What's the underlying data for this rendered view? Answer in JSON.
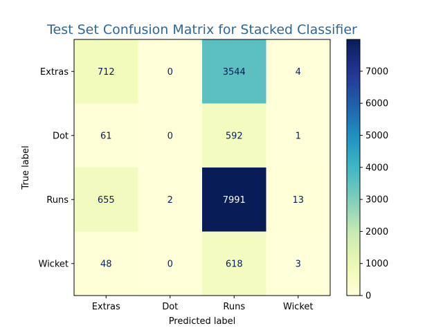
{
  "chart_data": {
    "type": "heatmap",
    "title": "Test Set Confusion Matrix for Stacked Classifier",
    "xlabel": "Predicted label",
    "ylabel": "True label",
    "x_categories": [
      "Extras",
      "Dot",
      "Runs",
      "Wicket"
    ],
    "y_categories": [
      "Extras",
      "Dot",
      "Runs",
      "Wicket"
    ],
    "values": [
      [
        712,
        0,
        3544,
        4
      ],
      [
        61,
        0,
        592,
        1
      ],
      [
        655,
        2,
        7991,
        13
      ],
      [
        48,
        0,
        618,
        3
      ]
    ],
    "colormap": "YlGnBu",
    "colorbar": {
      "min": 0,
      "max": 7991,
      "ticks": [
        0,
        1000,
        2000,
        3000,
        4000,
        5000,
        6000,
        7000
      ]
    },
    "colors": {
      "title": "#2f6694",
      "text_dark": "#081d58",
      "text_light": "#ffffff"
    }
  }
}
